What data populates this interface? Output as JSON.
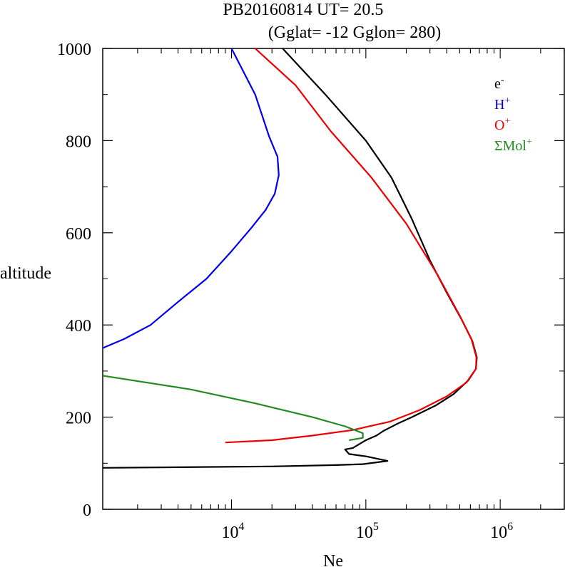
{
  "chart_data": {
    "type": "line",
    "title": "PB20160814   UT=  20.5",
    "subtitle": "(Gglat= -12   Gglon=  280)",
    "xlabel": "Ne",
    "ylabel": "altitude",
    "xscale": "log",
    "xlim": [
      1100,
      3000000
    ],
    "ylim": [
      0,
      1000
    ],
    "x_tick_labels": [
      {
        "value": 10000,
        "base": "10",
        "exp": "4"
      },
      {
        "value": 100000,
        "base": "10",
        "exp": "5"
      },
      {
        "value": 1000000,
        "base": "10",
        "exp": "6"
      }
    ],
    "y_ticks": [
      0,
      200,
      400,
      600,
      800,
      1000
    ],
    "legend_position": "top-right",
    "series": [
      {
        "name": "e",
        "name_sup": "-",
        "color": "#000000",
        "points": [
          [
            1100,
            90
          ],
          [
            20000,
            93
          ],
          [
            60000,
            96
          ],
          [
            95000,
            98
          ],
          [
            145000,
            105
          ],
          [
            100000,
            115
          ],
          [
            75000,
            120
          ],
          [
            70000,
            130
          ],
          [
            80000,
            133
          ],
          [
            100000,
            150
          ],
          [
            120000,
            160
          ],
          [
            135000,
            170
          ],
          [
            170000,
            185
          ],
          [
            220000,
            200
          ],
          [
            330000,
            225
          ],
          [
            450000,
            250
          ],
          [
            580000,
            280
          ],
          [
            660000,
            305
          ],
          [
            670000,
            330
          ],
          [
            620000,
            365
          ],
          [
            520000,
            410
          ],
          [
            400000,
            470
          ],
          [
            300000,
            540
          ],
          [
            220000,
            630
          ],
          [
            155000,
            720
          ],
          [
            100000,
            800
          ],
          [
            50000,
            900
          ],
          [
            24000,
            1000
          ]
        ]
      },
      {
        "name": "H",
        "name_sup": "+",
        "color": "#0000ee",
        "points": [
          [
            1100,
            350
          ],
          [
            1600,
            370
          ],
          [
            2500,
            400
          ],
          [
            4000,
            450
          ],
          [
            6500,
            500
          ],
          [
            10000,
            560
          ],
          [
            14000,
            610
          ],
          [
            18000,
            650
          ],
          [
            21000,
            685
          ],
          [
            22500,
            725
          ],
          [
            22000,
            765
          ],
          [
            19000,
            810
          ],
          [
            15000,
            900
          ],
          [
            10000,
            1000
          ]
        ]
      },
      {
        "name": "O",
        "name_sup": "+",
        "color": "#ee0000",
        "points": [
          [
            9000,
            145
          ],
          [
            20000,
            150
          ],
          [
            40000,
            160
          ],
          [
            80000,
            172
          ],
          [
            150000,
            190
          ],
          [
            250000,
            215
          ],
          [
            400000,
            245
          ],
          [
            560000,
            275
          ],
          [
            660000,
            305
          ],
          [
            665000,
            330
          ],
          [
            610000,
            370
          ],
          [
            500000,
            420
          ],
          [
            340000,
            510
          ],
          [
            200000,
            620
          ],
          [
            110000,
            720
          ],
          [
            55000,
            820
          ],
          [
            30000,
            920
          ],
          [
            15000,
            1000
          ]
        ]
      },
      {
        "name": "ΣMol",
        "name_sup": "+",
        "color": "#228b22",
        "points": [
          [
            1100,
            290
          ],
          [
            5000,
            260
          ],
          [
            15000,
            230
          ],
          [
            40000,
            200
          ],
          [
            70000,
            180
          ],
          [
            95000,
            165
          ],
          [
            95000,
            155
          ],
          [
            75000,
            150
          ]
        ]
      }
    ]
  }
}
